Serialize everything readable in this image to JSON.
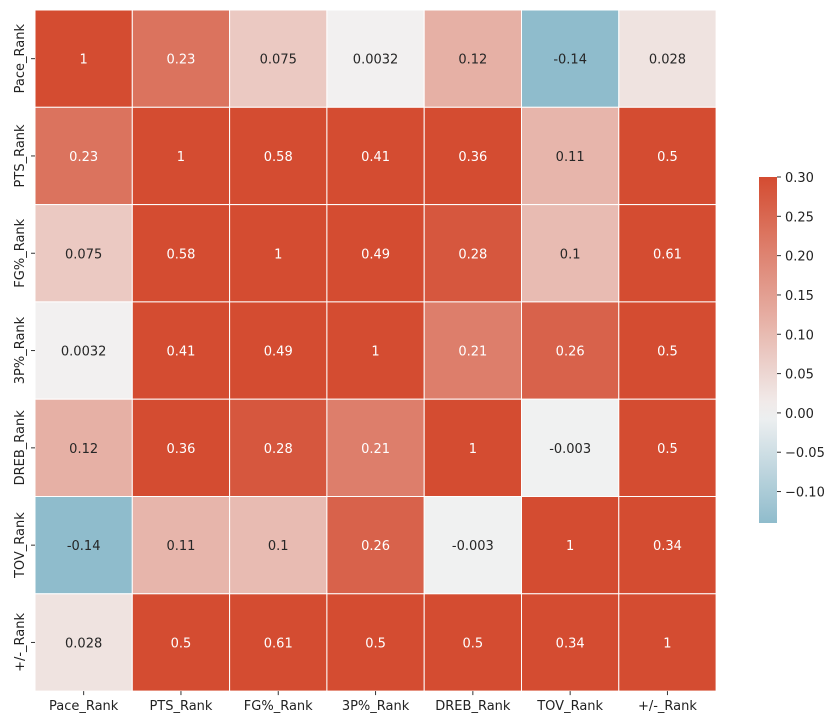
{
  "chart_data": {
    "type": "heatmap",
    "title": "",
    "xlabel": "",
    "ylabel": "",
    "x_categories": [
      "Pace_Rank",
      "PTS_Rank",
      "FG%_Rank",
      "3P%_Rank",
      "DREB_Rank",
      "TOV_Rank",
      "+/-_Rank"
    ],
    "y_categories": [
      "Pace_Rank",
      "PTS_Rank",
      "FG%_Rank",
      "3P%_Rank",
      "DREB_Rank",
      "TOV_Rank",
      "+/-_Rank"
    ],
    "values": [
      [
        1,
        0.23,
        0.075,
        0.0032,
        0.12,
        -0.14,
        0.028
      ],
      [
        0.23,
        1,
        0.58,
        0.41,
        0.36,
        0.11,
        0.5
      ],
      [
        0.075,
        0.58,
        1,
        0.49,
        0.28,
        0.1,
        0.61
      ],
      [
        0.0032,
        0.41,
        0.49,
        1,
        0.21,
        0.26,
        0.5
      ],
      [
        0.12,
        0.36,
        0.28,
        0.21,
        1,
        -0.003,
        0.5
      ],
      [
        -0.14,
        0.11,
        0.1,
        0.26,
        -0.003,
        1,
        0.34
      ],
      [
        0.028,
        0.5,
        0.61,
        0.5,
        0.5,
        0.34,
        1
      ]
    ],
    "cell_labels": [
      [
        "1",
        "0.23",
        "0.075",
        "0.0032",
        "0.12",
        "-0.14",
        "0.028"
      ],
      [
        "0.23",
        "1",
        "0.58",
        "0.41",
        "0.36",
        "0.11",
        "0.5"
      ],
      [
        "0.075",
        "0.58",
        "1",
        "0.49",
        "0.28",
        "0.1",
        "0.61"
      ],
      [
        "0.0032",
        "0.41",
        "0.49",
        "1",
        "0.21",
        "0.26",
        "0.5"
      ],
      [
        "0.12",
        "0.36",
        "0.28",
        "0.21",
        "1",
        "-0.003",
        "0.5"
      ],
      [
        "-0.14",
        "0.11",
        "0.1",
        "0.26",
        "-0.003",
        "1",
        "0.34"
      ],
      [
        "0.028",
        "0.5",
        "0.61",
        "0.5",
        "0.5",
        "0.34",
        "1"
      ]
    ],
    "colorbar": {
      "vmin": -0.14,
      "vmax": 0.3,
      "center": 0,
      "ticks": [
        -0.1,
        -0.05,
        0,
        0.05,
        0.1,
        0.15,
        0.2,
        0.25,
        0.3
      ],
      "tick_labels": [
        "−0.10",
        "−0.05",
        "0.00",
        "0.05",
        "0.10",
        "0.15",
        "0.20",
        "0.25",
        "0.30"
      ],
      "placement": "right"
    },
    "colors": {
      "negative": "#8fbccc",
      "center": "#f2f2f2",
      "positive": "#d44c31",
      "cell_border": "#ffffff",
      "text_light": "#ffffff",
      "text_dark": "#262626"
    }
  }
}
